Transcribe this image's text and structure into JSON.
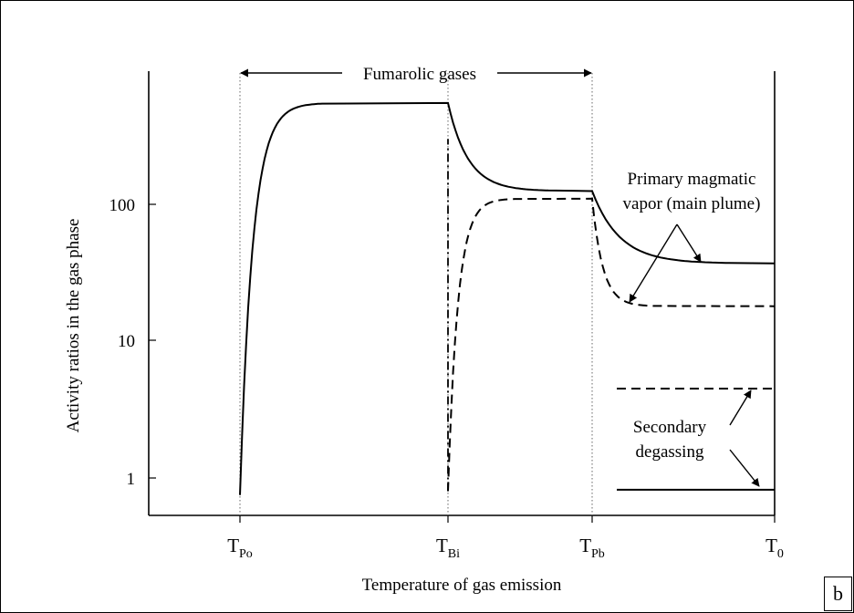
{
  "chart_data": {
    "type": "line",
    "title": "",
    "xlabel": "Temperature of gas emission",
    "ylabel": "Activity ratios in the gas phase",
    "y_scale": "log",
    "ylim": [
      0.6,
      1500
    ],
    "y_ticks": [
      {
        "value": 1,
        "label": "1"
      },
      {
        "value": 10,
        "label": "10"
      },
      {
        "value": 100,
        "label": "100"
      }
    ],
    "x_ticks": [
      {
        "id": "po",
        "main": "T",
        "sub": "Po"
      },
      {
        "id": "bi",
        "main": "T",
        "sub": "Bi"
      },
      {
        "id": "pb",
        "main": "T",
        "sub": "Pb"
      },
      {
        "id": "t0",
        "main": "T",
        "sub": "0"
      }
    ],
    "grid": false,
    "legend": "none",
    "series": [
      {
        "style": "solid",
        "points": [
          {
            "x": "T_Po",
            "y": 0.75
          },
          {
            "x": "T_Po+",
            "y": 550
          },
          {
            "x": "T_Bi",
            "y": 550
          },
          {
            "x": "T_Bi",
            "y": 125
          },
          {
            "x": "T_Pb",
            "y": 125
          },
          {
            "x": "T_Pb",
            "y": 37
          },
          {
            "x": "T_0",
            "y": 37
          }
        ]
      },
      {
        "style": "dashed",
        "points": [
          {
            "x": "T_Bi",
            "y": 0.8
          },
          {
            "x": "T_Bi+",
            "y": 110
          },
          {
            "x": "T_Pb",
            "y": 110
          },
          {
            "x": "T_Pb",
            "y": 18
          },
          {
            "x": "T_0",
            "y": 18
          }
        ]
      },
      {
        "style": "dash-dot",
        "points": [
          {
            "x": "T_Bi",
            "y": 0.8
          },
          {
            "x": "T_Bi",
            "y": 300
          }
        ]
      },
      {
        "style": "dashed",
        "points": [
          {
            "x": "T_Pb+",
            "y": 4.5
          },
          {
            "x": "T_0",
            "y": 4.5
          }
        ]
      },
      {
        "style": "solid",
        "points": [
          {
            "x": "T_Pb+",
            "y": 0.82
          },
          {
            "x": "T_0",
            "y": 0.82
          }
        ]
      }
    ],
    "annotations": [
      {
        "id": "fumarolic",
        "text": "Fumarolic gases"
      },
      {
        "id": "primary",
        "lines": [
          "Primary magmatic",
          "vapor (main plume)"
        ]
      },
      {
        "id": "secondary",
        "lines": [
          "Secondary",
          "degassing"
        ]
      }
    ]
  },
  "panel_label": "b"
}
